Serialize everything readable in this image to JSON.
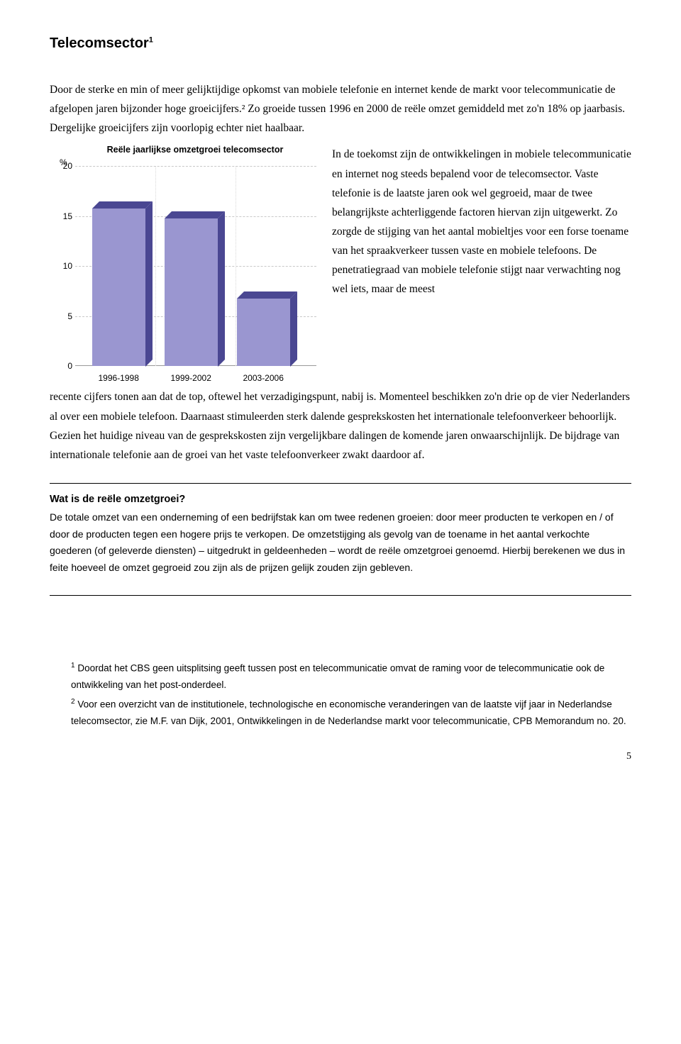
{
  "title": "Telecomsector",
  "title_sup": "1",
  "intro": "Door de sterke en min of meer gelijktijdige opkomst van mobiele telefonie en internet kende de markt voor telecommunicatie de afgelopen jaren bijzonder hoge groeicijfers.² Zo groeide tussen 1996 en 2000 de reële omzet gemiddeld met zo'n 18% op jaarbasis. Dergelijke groeicijfers zijn voorlopig echter niet haalbaar.",
  "sidetext": "In de toekomst zijn de ontwikkelingen in mobiele telecommunicatie en internet nog steeds bepalend voor de telecomsector. Vaste telefonie is de laatste jaren ook wel gegroeid, maar de twee belangrijkste achterliggende factoren hiervan zijn uitgewerkt. Zo zorgde de stijging van het aantal mobieltjes voor een forse toename van het spraakverkeer tussen vaste en mobiele telefoons. De penetratiegraad van mobiele telefonie stijgt naar verwachting nog wel iets, maar de meest",
  "after": "recente cijfers tonen aan dat de top, oftewel het verzadigingspunt, nabij is. Momenteel beschikken zo'n drie op de vier Nederlanders al over een mobiele telefoon. Daarnaast stimuleerden sterk dalende gesprekskosten het internationale telefoonverkeer behoorlijk. Gezien het huidige niveau van de gesprekskosten zijn vergelijkbare dalingen de komende jaren onwaarschijnlijk. De bijdrage van internationale telefonie aan de groei van het vaste telefoonverkeer zwakt daardoor af.",
  "box": {
    "title": "Wat is de reële omzetgroei?",
    "body": "De totale omzet van een onderneming of een bedrijfstak kan om twee redenen groeien: door meer producten te verkopen en / of door de producten tegen een hogere prijs te verkopen. De omzetstijging als gevolg van de toename in het aantal verkochte goederen (of geleverde diensten) – uitgedrukt in geldeenheden – wordt de reële omzetgroei genoemd. Hierbij berekenen we dus in feite hoeveel de omzet gegroeid zou zijn als de prijzen gelijk zouden zijn gebleven."
  },
  "footnotes": {
    "fn1_sup": "1",
    "fn1": " Doordat het CBS geen uitsplitsing geeft tussen post en telecommunicatie omvat de raming voor de telecommunicatie ook de ontwikkeling van het post-onderdeel.",
    "fn2_sup": "2",
    "fn2": " Voor een overzicht van de institutionele, technologische en economische veranderingen van de laatste vijf jaar in Nederlandse telecomsector, zie M.F. van Dijk, 2001, Ontwikkelingen in de Nederlandse markt voor telecommunicatie, CPB Memorandum no. 20."
  },
  "pagenum": "5",
  "chart": {
    "type": "bar",
    "title": "Reële jaarlijkse omzetgroei telecomsector",
    "y_unit": "%",
    "categories": [
      "1996-1998",
      "1999-2002",
      "2003-2006"
    ],
    "values": [
      15.8,
      14.8,
      6.8
    ],
    "ylim": [
      0,
      20
    ],
    "yticks": [
      0,
      5,
      10,
      15,
      20
    ],
    "bar_front_color": "#9a96d0",
    "bar_top_color": "#4a4792",
    "bar_side_color": "#4a4792",
    "grid_color": "#c8c8c8",
    "bar_width_pct": 22,
    "bar_positions_pct": [
      18,
      48,
      78
    ],
    "title_fontsize": 12.5,
    "tick_fontsize": 12
  }
}
